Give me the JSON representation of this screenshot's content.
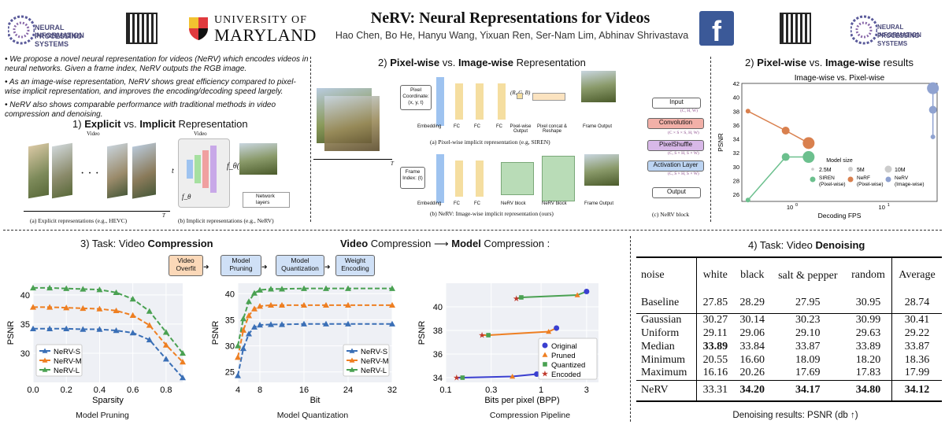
{
  "header": {
    "title_bold": "NeRV",
    "title_rest": ": Neural Representations for Videos",
    "authors": "Hao Chen, Bo He, Hanyu Wang, Yixuan Ren, Ser-Nam Lim, Abhinav Shrivastava",
    "neurips_line1": "NEURAL INFORMATION",
    "neurips_line2": "PROCESSING SYSTEMS",
    "umd_line1": "UNIVERSITY OF",
    "umd_line2": "MARYLAND",
    "fb_glyph": "f"
  },
  "intro": {
    "bullets": [
      "We propose a novel neural representation for videos (NeRV) which encodes videos in neural networks. Given a frame index, NeRV outputs the RGB image.",
      "As an image-wise representation, NeRV shows great efficiency compared to pixel-wise implicit representation, and improves the encoding/decoding speed largely.",
      "NeRV also shows comparable performance with traditional methods in video compression and denoising."
    ]
  },
  "sec1": {
    "num": "1)",
    "w1": "Explicit",
    "vs": "vs.",
    "w2": "Implicit",
    "rest": "Representation",
    "video_label": "Video",
    "video_label2": "Video",
    "dots": "· · ·",
    "cap_a": "(a)  Explicit representations (e.g., HEVC)",
    "cap_b": "(b) Implicit representations (e.g., NeRV)",
    "t_label": "T",
    "t_in": "t",
    "f_label": "f_θ",
    "f_out": "f_θ(t)",
    "legend": "Network layers"
  },
  "sec2": {
    "num": "2)",
    "w1": "Pixel-wise",
    "vs": "vs.",
    "w2": "Image-wise",
    "rest": "Representation",
    "pix_coord": "Pixel Coordinate: (x, y, t)",
    "frame_index": "Frame Index: (t)",
    "rgb": "(R, G, B)",
    "labels_top": [
      "Embedding",
      "FC",
      "FC",
      "FC",
      "Pixel-wise Output",
      "Pixel concat & Reshape",
      "Frame Output"
    ],
    "labels_bot": [
      "Embedding",
      "FC",
      "FC",
      "NeRV block",
      "NeRV block",
      "Frame Output"
    ],
    "cap_a": "(a) Pixel-wise implicit representation (e.g, SIREN)",
    "cap_b": "(b) NeRV: Image-wise implicit representation (ours)",
    "t_label": "T",
    "block": {
      "input": "Input",
      "conv": "Convolution",
      "ps": "PixelShuffle",
      "act": "Activation Layer",
      "output": "Output",
      "d1": "(C, H, W)",
      "d2": "(C × S × S, H, W)",
      "d3": "(C, S × H, S × W)",
      "d4": "(C, S × H, S × W)"
    },
    "cap_c": "(c) NeRV block"
  },
  "sec2r": {
    "num": "2)",
    "w1": "Pixel-wise",
    "vs": "vs.",
    "w2": "Image-wise",
    "rest": "results",
    "chart_title": "Image-wise vs. Pixel-wise"
  },
  "sec3": {
    "title_pre": "3) Task: Video ",
    "title_bold": "Compression",
    "pipe_pre": "Video",
    "pipe_mid": " Compression ",
    "arrow": "⟶",
    "pipe_bold": "Model",
    "pipe_post": " Compression :",
    "steps": [
      "Video Overfit",
      "Model Pruning",
      "Model Quantization",
      "Weight Encoding"
    ],
    "cap1": "Model Pruning",
    "cap2": "Model Quantization",
    "cap3": "Compression Pipeline"
  },
  "sec4": {
    "title_pre": "4) Task: Video ",
    "title_bold": "Denoising",
    "caption": "Denoising results: PSNR (db ↑)",
    "headers": [
      "noise",
      "white",
      "black",
      "salt & pepper",
      "random",
      "Average"
    ],
    "rows": [
      [
        "Baseline",
        "27.85",
        "28.29",
        "27.95",
        "30.95",
        "28.74"
      ],
      [
        "Gaussian",
        "30.27",
        "30.14",
        "30.23",
        "30.99",
        "30.41"
      ],
      [
        "Uniform",
        "29.11",
        "29.06",
        "29.10",
        "29.63",
        "29.22"
      ],
      [
        "Median",
        "33.89",
        "33.84",
        "33.87",
        "33.89",
        "33.87"
      ],
      [
        "Minimum",
        "20.55",
        "16.60",
        "18.09",
        "18.20",
        "18.36"
      ],
      [
        "Maximum",
        "16.16",
        "20.26",
        "17.69",
        "17.83",
        "17.99"
      ],
      [
        "NeRV",
        "33.31",
        "34.20",
        "34.17",
        "34.80",
        "34.12"
      ]
    ]
  },
  "chart_data": [
    {
      "type": "scatter",
      "title": "Image-wise vs. Pixel-wise",
      "xlabel": "Decoding FPS",
      "ylabel": "PSNR",
      "xscale": "log",
      "xlim": [
        0.3,
        40
      ],
      "ylim": [
        25,
        42
      ],
      "yticks": [
        26,
        28,
        30,
        32,
        34,
        36,
        38,
        40,
        42
      ],
      "xticks": [
        "10^0",
        "10^1"
      ],
      "legend_title": "Model size",
      "legend": [
        "2.5M",
        "5M",
        "10M",
        "SIREN (Pixel-wise)",
        "NeRF (Pixel-wise)",
        "NeRV (Image-wise)"
      ],
      "series": [
        {
          "name": "SIREN (Pixel-wise)",
          "color": "#6cc08e",
          "x": [
            0.35,
            0.9,
            1.6
          ],
          "y": [
            25.2,
            31.4,
            31.4
          ]
        },
        {
          "name": "NeRF (Pixel-wise)",
          "color": "#d9804e",
          "x": [
            0.35,
            0.9,
            1.6
          ],
          "y": [
            38.0,
            35.2,
            33.4
          ]
        },
        {
          "name": "NeRV (Image-wise)",
          "color": "#8fa2d0",
          "x": [
            36,
            36,
            36
          ],
          "y": [
            34.3,
            38.2,
            41.3
          ]
        }
      ]
    },
    {
      "type": "line",
      "title": "",
      "xlabel": "Sparsity",
      "ylabel": "PSNR",
      "xlim": [
        0,
        0.9
      ],
      "ylim": [
        25,
        42
      ],
      "xticks": [
        "0.0",
        "0.2",
        "0.4",
        "0.6",
        "0.8"
      ],
      "yticks": [
        "30",
        "35",
        "40"
      ],
      "x": [
        0,
        0.1,
        0.2,
        0.3,
        0.4,
        0.5,
        0.6,
        0.7,
        0.8,
        0.9
      ],
      "series": [
        {
          "name": "NeRV-S",
          "color": "#3a6fb6",
          "values": [
            34.2,
            34.2,
            34.2,
            34.1,
            34.1,
            33.9,
            33.5,
            32.3,
            29.0,
            25.8
          ]
        },
        {
          "name": "NeRV-M",
          "color": "#ee7f22",
          "values": [
            37.9,
            37.9,
            37.8,
            37.7,
            37.6,
            37.3,
            36.5,
            34.8,
            31.4,
            28.5
          ]
        },
        {
          "name": "NeRV-L",
          "color": "#4aa152",
          "values": [
            41.2,
            41.2,
            41.1,
            41.0,
            40.9,
            40.4,
            39.3,
            37.2,
            33.6,
            30.0
          ]
        }
      ]
    },
    {
      "type": "line",
      "title": "",
      "xlabel": "Bit",
      "ylabel": "PSNR",
      "xlim": [
        4,
        32
      ],
      "ylim": [
        23,
        42
      ],
      "xticks": [
        "4",
        "8",
        "16",
        "24",
        "32"
      ],
      "yticks": [
        "25",
        "30",
        "35",
        "40"
      ],
      "x": [
        4,
        5,
        6,
        7,
        8,
        10,
        12,
        16,
        20,
        24,
        32
      ],
      "series": [
        {
          "name": "NeRV-S",
          "color": "#3a6fb6",
          "values": [
            24.3,
            29.5,
            32.3,
            33.6,
            34.0,
            34.1,
            34.1,
            34.2,
            34.2,
            34.2,
            34.2
          ]
        },
        {
          "name": "NeRV-M",
          "color": "#ee7f22",
          "values": [
            27.8,
            33.0,
            35.8,
            37.1,
            37.6,
            37.8,
            37.8,
            37.8,
            37.8,
            37.8,
            37.8
          ]
        },
        {
          "name": "NeRV-L",
          "color": "#4aa152",
          "values": [
            30.0,
            35.2,
            38.5,
            40.1,
            40.7,
            40.9,
            40.9,
            41.0,
            41.0,
            41.0,
            41.0
          ]
        }
      ]
    },
    {
      "type": "scatter",
      "title": "",
      "xlabel": "Bits per pixel (BPP)",
      "ylabel": "PSNR",
      "xscale": "log",
      "xlim": [
        0.1,
        4
      ],
      "ylim": [
        33.6,
        42
      ],
      "xticks": [
        "0.1",
        "0.3",
        "1",
        "3"
      ],
      "yticks": [
        "34",
        "36",
        "38",
        "40"
      ],
      "legend": [
        "Original",
        "Pruned",
        "Quantized",
        "Encoded"
      ],
      "series": [
        {
          "name": "S",
          "color": "#3a3fd0",
          "x": [
            0.13,
            0.15,
            0.5,
            0.9
          ],
          "y": [
            34.0,
            34.0,
            34.1,
            34.3
          ]
        },
        {
          "name": "M",
          "color": "#ee7f22",
          "x": [
            0.24,
            0.28,
            1.2,
            1.45
          ],
          "y": [
            37.6,
            37.6,
            37.9,
            38.2
          ]
        },
        {
          "name": "L",
          "color": "#4aa152",
          "x": [
            0.55,
            0.62,
            2.4,
            3.0
          ],
          "y": [
            40.7,
            40.8,
            41.0,
            41.3
          ]
        }
      ]
    }
  ]
}
